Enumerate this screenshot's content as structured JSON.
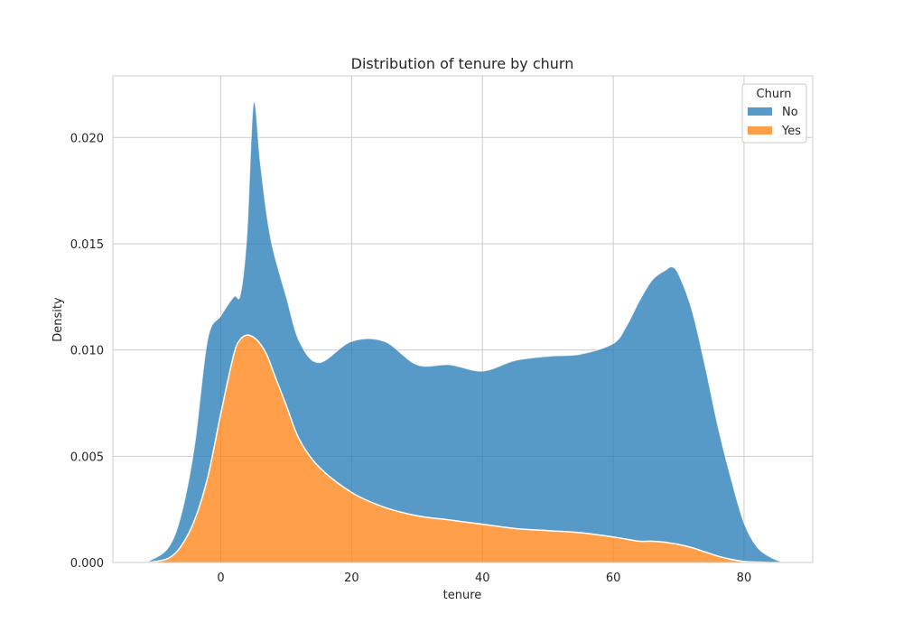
{
  "chart_data": {
    "type": "area",
    "stacked": true,
    "title": "Distribution of tenure by churn",
    "xlabel": "tenure",
    "ylabel": "Density",
    "xlim": [
      -16.5,
      90.5
    ],
    "ylim": [
      0,
      0.0229
    ],
    "xticks": [
      0,
      20,
      40,
      60,
      80
    ],
    "yticks": [
      0.0,
      0.005,
      0.01,
      0.015,
      0.02
    ],
    "ytick_labels": [
      "0.000",
      "0.005",
      "0.010",
      "0.015",
      "0.020"
    ],
    "grid": true,
    "legend": {
      "title": "Churn",
      "placement": "top-right"
    },
    "x": [
      -11,
      -8,
      -6,
      -4,
      -2,
      0,
      2,
      3,
      4,
      5,
      6,
      7,
      8,
      10,
      12,
      15,
      20,
      25,
      30,
      35,
      40,
      45,
      50,
      55,
      60,
      62,
      64,
      66,
      68,
      69,
      70,
      72,
      74,
      76,
      78,
      80,
      82,
      84,
      85.5
    ],
    "series": [
      {
        "name": "No",
        "color": "#1f77b4",
        "opacity": 0.75,
        "values": [
          5e-05,
          0.0005,
          0.0015,
          0.0035,
          0.0065,
          0.0046,
          0.0027,
          0.0021,
          0.0047,
          0.011,
          0.0086,
          0.0066,
          0.0057,
          0.0051,
          0.0046,
          0.0049,
          0.0071,
          0.0078,
          0.0071,
          0.0073,
          0.0072,
          0.0079,
          0.0082,
          0.0084,
          0.0091,
          0.01,
          0.0113,
          0.0123,
          0.0128,
          0.013,
          0.0127,
          0.0112,
          0.0088,
          0.0061,
          0.0038,
          0.0018,
          0.0007,
          0.00025,
          5e-05
        ]
      },
      {
        "name": "Yes",
        "color": "#ff7f0e",
        "opacity": 0.75,
        "values": [
          0.0,
          0.0002,
          0.0008,
          0.002,
          0.004,
          0.007,
          0.0098,
          0.0105,
          0.0107,
          0.0106,
          0.0103,
          0.0098,
          0.009,
          0.0074,
          0.0058,
          0.0045,
          0.0033,
          0.0026,
          0.0022,
          0.002,
          0.0018,
          0.0016,
          0.0015,
          0.0014,
          0.0012,
          0.0011,
          0.001,
          0.001,
          0.00095,
          0.0009,
          0.00085,
          0.0007,
          0.0005,
          0.0003,
          0.00015,
          5e-05,
          2e-05,
          0.0,
          0.0
        ]
      }
    ]
  }
}
